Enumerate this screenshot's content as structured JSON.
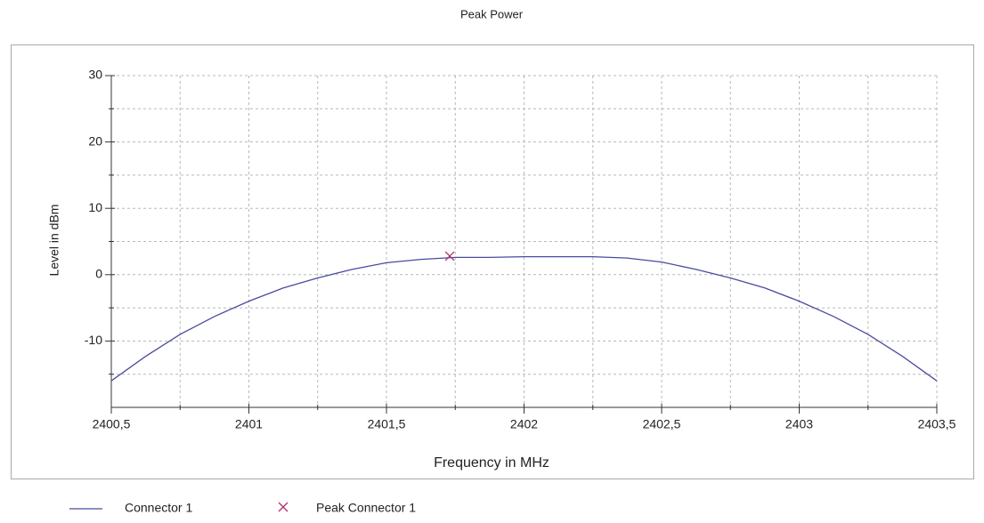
{
  "chart_data": {
    "type": "line",
    "title": "Peak Power",
    "x_label": "Frequency in MHz",
    "y_label": "Level in dBm",
    "x": [
      2400.5,
      2400.625,
      2400.75,
      2400.875,
      2401,
      2401.125,
      2401.25,
      2401.375,
      2401.5,
      2401.625,
      2401.75,
      2401.875,
      2402,
      2402.125,
      2402.25,
      2402.375,
      2402.5,
      2402.625,
      2402.75,
      2402.875,
      2403,
      2403.125,
      2403.25,
      2403.375,
      2403.5
    ],
    "series": [
      {
        "name": "Connector 1",
        "color": "#4a4aa0",
        "values": [
          -16,
          -12.3,
          -9,
          -6.3,
          -4,
          -2,
          -0.5,
          0.8,
          1.8,
          2.3,
          2.6,
          2.6,
          2.7,
          2.7,
          2.7,
          2.5,
          1.9,
          0.8,
          -0.5,
          -2,
          -4,
          -6.3,
          -9,
          -12.3,
          -16
        ]
      }
    ],
    "markers": [
      {
        "name": "Peak Connector 1",
        "color": "#b0306a",
        "x": [
          2401.73
        ],
        "values": [
          2.8
        ]
      }
    ],
    "xlim": [
      2400.5,
      2403.5
    ],
    "ylim": [
      -20,
      30
    ],
    "xticks": [
      {
        "value": 2400.5,
        "label": "2400,5"
      },
      2401,
      {
        "value": 2401.5,
        "label": "2401,5"
      },
      2402,
      {
        "value": 2402.5,
        "label": "2402,5"
      },
      2403,
      {
        "value": 2403.5,
        "label": "2403,5"
      }
    ],
    "xminorticks": [
      2400.75,
      2401.25,
      2401.75,
      2402.25,
      2402.75,
      2403.25
    ],
    "yticks": [
      -10,
      0,
      10,
      20,
      30
    ],
    "yminorticks": [
      -15,
      -5,
      5,
      15,
      25
    ],
    "grid": true,
    "legend": "bottom"
  }
}
